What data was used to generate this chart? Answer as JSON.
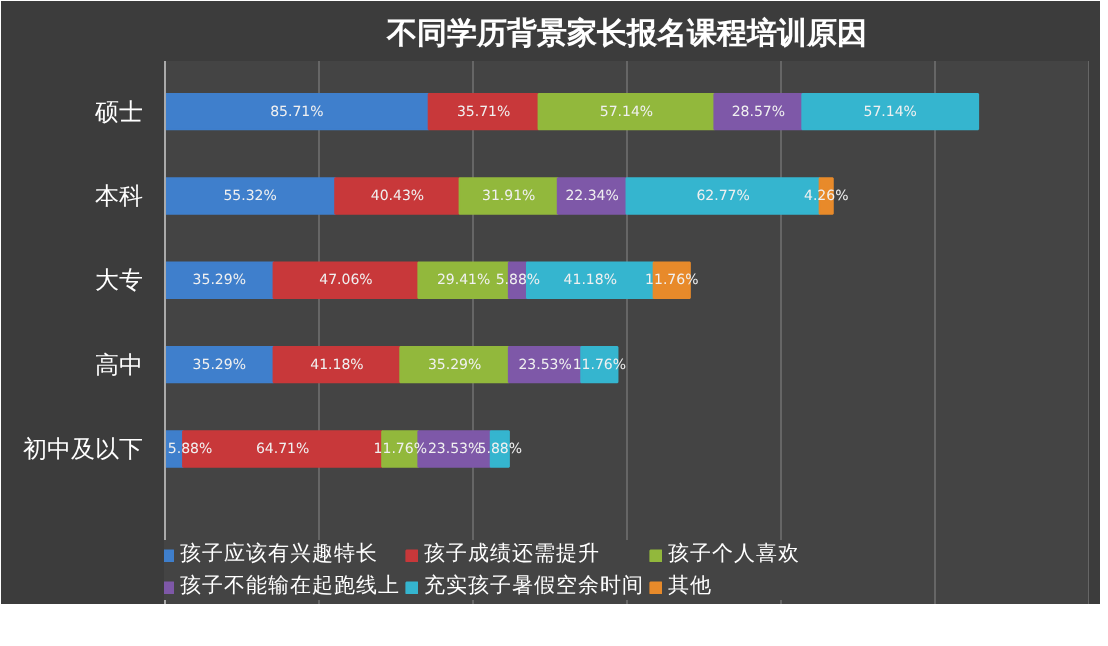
{
  "chart_data": {
    "type": "bar",
    "orientation": "horizontal",
    "stacked": true,
    "title": "不同学历背景家长报名课程培训原因",
    "categories": [
      "硕士",
      "本科",
      "大专",
      "高中",
      "初中及以下"
    ],
    "series": [
      {
        "name": "孩子应该有兴趣特长",
        "color": "#3f7fcc",
        "values": [
          85.71,
          55.32,
          35.29,
          35.29,
          5.88
        ],
        "value_labels": [
          "85.71%",
          "55.32%",
          "35.29%",
          "35.29%",
          "5.88%"
        ]
      },
      {
        "name": "孩子成绩还需提升",
        "color": "#c8383a",
        "values": [
          35.71,
          40.43,
          47.06,
          41.18,
          64.71
        ],
        "value_labels": [
          "35.71%",
          "40.43%",
          "47.06%",
          "41.18%",
          "64.71%"
        ]
      },
      {
        "name": "孩子个人喜欢",
        "color": "#92b83c",
        "values": [
          57.14,
          31.91,
          29.41,
          35.29,
          11.76
        ],
        "value_labels": [
          "57.14%",
          "31.91%",
          "29.41%",
          "35.29%",
          "11.76%"
        ]
      },
      {
        "name": "孩子不能输在起跑线上",
        "color": "#7e58a8",
        "values": [
          28.57,
          22.34,
          5.88,
          23.53,
          23.53
        ],
        "value_labels": [
          "28.57%",
          "22.34%",
          "5.88%",
          "23.53%",
          "23.53%"
        ]
      },
      {
        "name": "充实孩子暑假空余时间",
        "color": "#35b5cf",
        "values": [
          57.14,
          62.77,
          41.18,
          11.76,
          5.88
        ],
        "value_labels": [
          "57.14%",
          "62.77%",
          "41.18%",
          "11.76%",
          "5.88%"
        ]
      },
      {
        "name": "其他",
        "color": "#e88a2a",
        "values": [
          null,
          4.26,
          11.76,
          null,
          null
        ],
        "value_labels": [
          null,
          "4.26%",
          "11.76%",
          null,
          null
        ]
      }
    ],
    "tick_labels": "y",
    "grid": "x",
    "legend": "bottom"
  }
}
